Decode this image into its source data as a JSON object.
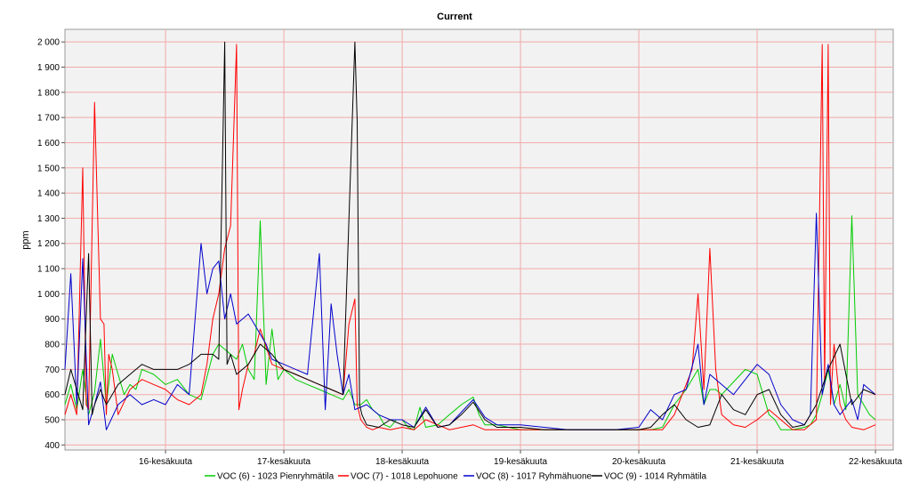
{
  "chart_data": {
    "type": "line",
    "title": "Current",
    "xlabel": "",
    "ylabel": "ppm",
    "ylim": [
      380,
      2050
    ],
    "xlim": [
      15.15,
      22.15
    ],
    "grid": true,
    "legend_position": "bottom",
    "colors": {
      "plot_background": "#f2f2f2",
      "grid": "#f2a9a9"
    },
    "y_ticks": [
      {
        "value": 400,
        "label": "400"
      },
      {
        "value": 500,
        "label": "500"
      },
      {
        "value": 600,
        "label": "600"
      },
      {
        "value": 700,
        "label": "700"
      },
      {
        "value": 800,
        "label": "800"
      },
      {
        "value": 900,
        "label": "900"
      },
      {
        "value": 1000,
        "label": "1 000"
      },
      {
        "value": 1100,
        "label": "1 100"
      },
      {
        "value": 1200,
        "label": "1 200"
      },
      {
        "value": 1300,
        "label": "1 300"
      },
      {
        "value": 1400,
        "label": "1 400"
      },
      {
        "value": 1500,
        "label": "1 500"
      },
      {
        "value": 1600,
        "label": "1 600"
      },
      {
        "value": 1700,
        "label": "1 700"
      },
      {
        "value": 1800,
        "label": "1 800"
      },
      {
        "value": 1900,
        "label": "1 900"
      },
      {
        "value": 2000,
        "label": "2 000"
      }
    ],
    "x_ticks": [
      {
        "value": 16,
        "label": "16-kesäkuuta"
      },
      {
        "value": 17,
        "label": "17-kesäkuuta"
      },
      {
        "value": 18,
        "label": "18-kesäkuuta"
      },
      {
        "value": 19,
        "label": "19-kesäkuuta"
      },
      {
        "value": 20,
        "label": "20-kesäkuuta"
      },
      {
        "value": 21,
        "label": "21-kesäkuuta"
      },
      {
        "value": 22,
        "label": "22-kesäkuuta"
      }
    ],
    "series": [
      {
        "name": "VOC (6) - 1023 Pienryhmätila",
        "color": "#00cc00",
        "x": [
          15.15,
          15.2,
          15.25,
          15.3,
          15.35,
          15.4,
          15.45,
          15.5,
          15.55,
          15.6,
          15.65,
          15.7,
          15.75,
          15.8,
          15.9,
          16.0,
          16.1,
          16.2,
          16.3,
          16.4,
          16.45,
          16.5,
          16.55,
          16.6,
          16.65,
          16.7,
          16.75,
          16.8,
          16.85,
          16.9,
          16.95,
          17.0,
          17.1,
          17.2,
          17.3,
          17.4,
          17.5,
          17.55,
          17.6,
          17.65,
          17.7,
          17.75,
          17.8,
          17.85,
          17.9,
          17.95,
          18.0,
          18.05,
          18.1,
          18.15,
          18.2,
          18.3,
          18.4,
          18.5,
          18.6,
          18.65,
          18.7,
          18.8,
          18.9,
          19.0,
          19.2,
          19.4,
          19.6,
          19.8,
          20.0,
          20.1,
          20.2,
          20.3,
          20.4,
          20.5,
          20.55,
          20.6,
          20.65,
          20.7,
          20.8,
          20.9,
          21.0,
          21.1,
          21.15,
          21.2,
          21.3,
          21.4,
          21.45,
          21.5,
          21.55,
          21.6,
          21.65,
          21.7,
          21.75,
          21.8,
          21.85,
          21.9,
          21.95,
          22.0
        ],
        "y": [
          560,
          640,
          540,
          700,
          520,
          610,
          820,
          560,
          760,
          680,
          600,
          640,
          620,
          700,
          680,
          640,
          660,
          600,
          580,
          760,
          800,
          780,
          760,
          740,
          800,
          700,
          660,
          1290,
          640,
          860,
          660,
          700,
          660,
          640,
          620,
          600,
          580,
          620,
          560,
          560,
          580,
          540,
          520,
          480,
          470,
          500,
          500,
          470,
          460,
          550,
          470,
          480,
          520,
          560,
          590,
          520,
          480,
          480,
          470,
          460,
          460,
          460,
          460,
          460,
          460,
          460,
          470,
          560,
          620,
          700,
          560,
          620,
          620,
          600,
          650,
          700,
          680,
          520,
          500,
          460,
          460,
          470,
          480,
          520,
          600,
          700,
          560,
          640,
          540,
          1310,
          600,
          560,
          520,
          500
        ],
        "values": [
          560,
          640,
          540,
          700,
          520,
          610,
          820,
          560,
          760,
          680,
          600,
          640,
          620,
          700,
          680,
          640,
          660,
          600,
          580,
          760,
          800,
          780,
          760,
          740,
          800,
          700,
          660,
          1290,
          640,
          860,
          660,
          700,
          660,
          640,
          620,
          600,
          580,
          620,
          560,
          560,
          580,
          540,
          520,
          480,
          470,
          500,
          500,
          470,
          460,
          550,
          470,
          480,
          520,
          560,
          590,
          520,
          480,
          480,
          470,
          460,
          460,
          460,
          460,
          460,
          460,
          460,
          470,
          560,
          620,
          700,
          560,
          620,
          620,
          600,
          650,
          700,
          680,
          520,
          500,
          460,
          460,
          470,
          480,
          520,
          600,
          700,
          560,
          640,
          540,
          1310,
          600,
          560,
          520,
          500
        ]
      },
      {
        "name": "VOC (7) - 1018 Lepohuone",
        "color": "#ff0000",
        "x": [
          15.15,
          15.2,
          15.25,
          15.3,
          15.33,
          15.35,
          15.4,
          15.45,
          15.48,
          15.5,
          15.52,
          15.55,
          15.6,
          15.7,
          15.8,
          15.9,
          16.0,
          16.1,
          16.2,
          16.3,
          16.35,
          16.4,
          16.45,
          16.5,
          16.55,
          16.6,
          16.62,
          16.65,
          16.7,
          16.75,
          16.8,
          16.9,
          17.0,
          17.1,
          17.2,
          17.3,
          17.4,
          17.5,
          17.55,
          17.6,
          17.62,
          17.65,
          17.7,
          17.75,
          17.8,
          17.9,
          18.0,
          18.1,
          18.2,
          18.3,
          18.4,
          18.5,
          18.6,
          18.7,
          18.8,
          19.0,
          19.2,
          19.4,
          19.6,
          19.8,
          20.0,
          20.2,
          20.3,
          20.4,
          20.45,
          20.5,
          20.55,
          20.6,
          20.65,
          20.7,
          20.75,
          20.8,
          20.9,
          21.0,
          21.1,
          21.2,
          21.3,
          21.4,
          21.5,
          21.55,
          21.57,
          21.6,
          21.62,
          21.65,
          21.7,
          21.75,
          21.8,
          21.9,
          22.0
        ],
        "y": [
          520,
          600,
          520,
          1500,
          560,
          540,
          1760,
          900,
          880,
          520,
          760,
          700,
          520,
          620,
          660,
          640,
          620,
          580,
          560,
          600,
          720,
          900,
          1000,
          1180,
          1270,
          1990,
          540,
          620,
          720,
          760,
          860,
          720,
          700,
          680,
          660,
          640,
          620,
          600,
          880,
          980,
          560,
          500,
          470,
          460,
          470,
          460,
          470,
          460,
          500,
          480,
          460,
          470,
          480,
          460,
          460,
          460,
          460,
          460,
          460,
          460,
          460,
          460,
          520,
          640,
          700,
          1000,
          620,
          1180,
          700,
          520,
          500,
          480,
          470,
          500,
          540,
          500,
          460,
          460,
          500,
          1990,
          640,
          1990,
          560,
          800,
          560,
          500,
          470,
          460,
          480
        ],
        "values": [
          520,
          600,
          520,
          1500,
          560,
          540,
          1760,
          900,
          880,
          520,
          760,
          700,
          520,
          620,
          660,
          640,
          620,
          580,
          560,
          600,
          720,
          900,
          1000,
          1180,
          1270,
          1990,
          540,
          620,
          720,
          760,
          860,
          720,
          700,
          680,
          660,
          640,
          620,
          600,
          880,
          980,
          560,
          500,
          470,
          460,
          470,
          460,
          470,
          460,
          500,
          480,
          460,
          470,
          480,
          460,
          460,
          460,
          460,
          460,
          460,
          460,
          460,
          460,
          520,
          640,
          700,
          1000,
          620,
          1180,
          700,
          520,
          500,
          480,
          470,
          500,
          540,
          500,
          460,
          460,
          500,
          1990,
          640,
          1990,
          560,
          800,
          560,
          500,
          470,
          460,
          480
        ]
      },
      {
        "name": "VOC (8) - 1017 Ryhmähuone",
        "color": "#0000cc",
        "x": [
          15.15,
          15.2,
          15.25,
          15.3,
          15.35,
          15.4,
          15.45,
          15.5,
          15.6,
          15.7,
          15.8,
          15.9,
          16.0,
          16.1,
          16.2,
          16.3,
          16.35,
          16.4,
          16.45,
          16.5,
          16.55,
          16.6,
          16.7,
          16.75,
          16.8,
          16.85,
          16.9,
          17.0,
          17.1,
          17.2,
          17.3,
          17.35,
          17.4,
          17.45,
          17.5,
          17.55,
          17.6,
          17.7,
          17.8,
          17.9,
          18.0,
          18.1,
          18.2,
          18.3,
          18.4,
          18.5,
          18.6,
          18.7,
          18.8,
          19.0,
          19.2,
          19.4,
          19.6,
          19.8,
          20.0,
          20.1,
          20.2,
          20.3,
          20.4,
          20.5,
          20.55,
          20.6,
          20.7,
          20.8,
          20.9,
          21.0,
          21.1,
          21.2,
          21.3,
          21.4,
          21.45,
          21.5,
          21.55,
          21.6,
          21.65,
          21.7,
          21.8,
          21.85,
          21.9,
          22.0
        ],
        "y": [
          700,
          1080,
          560,
          1140,
          480,
          560,
          650,
          460,
          560,
          600,
          560,
          580,
          560,
          640,
          600,
          1200,
          1000,
          1100,
          1130,
          900,
          1000,
          880,
          920,
          880,
          840,
          800,
          740,
          720,
          700,
          680,
          1160,
          540,
          960,
          760,
          600,
          680,
          540,
          560,
          520,
          500,
          500,
          470,
          550,
          470,
          480,
          530,
          580,
          510,
          480,
          480,
          470,
          460,
          460,
          460,
          470,
          540,
          500,
          600,
          620,
          800,
          560,
          680,
          640,
          600,
          660,
          720,
          680,
          560,
          500,
          480,
          520,
          1320,
          600,
          720,
          560,
          520,
          580,
          500,
          640,
          600
        ],
        "values": [
          700,
          1080,
          560,
          1140,
          480,
          560,
          650,
          460,
          560,
          600,
          560,
          580,
          560,
          640,
          600,
          1200,
          1000,
          1100,
          1130,
          900,
          1000,
          880,
          920,
          880,
          840,
          800,
          740,
          720,
          700,
          680,
          1160,
          540,
          960,
          760,
          600,
          680,
          540,
          560,
          520,
          500,
          500,
          470,
          550,
          470,
          480,
          530,
          580,
          510,
          480,
          480,
          470,
          460,
          460,
          460,
          470,
          540,
          500,
          600,
          620,
          800,
          560,
          680,
          640,
          600,
          660,
          720,
          680,
          560,
          500,
          480,
          520,
          1320,
          600,
          720,
          560,
          520,
          580,
          500,
          640,
          600
        ]
      },
      {
        "name": "VOC (9) - 1014 Ryhmätila",
        "color": "#000000",
        "x": [
          15.15,
          15.2,
          15.3,
          15.35,
          15.38,
          15.4,
          15.45,
          15.5,
          15.6,
          15.7,
          15.8,
          15.9,
          16.0,
          16.1,
          16.2,
          16.3,
          16.4,
          16.45,
          16.5,
          16.52,
          16.55,
          16.6,
          16.7,
          16.8,
          16.9,
          17.0,
          17.1,
          17.2,
          17.3,
          17.4,
          17.5,
          17.6,
          17.62,
          17.64,
          17.66,
          17.7,
          17.8,
          17.9,
          18.0,
          18.1,
          18.2,
          18.3,
          18.4,
          18.5,
          18.6,
          18.7,
          18.8,
          19.0,
          19.2,
          19.4,
          19.6,
          19.8,
          20.0,
          20.1,
          20.2,
          20.3,
          20.4,
          20.5,
          20.6,
          20.7,
          20.8,
          20.9,
          21.0,
          21.1,
          21.2,
          21.3,
          21.4,
          21.5,
          21.6,
          21.7,
          21.8,
          21.9,
          22.0
        ],
        "y": [
          600,
          700,
          540,
          1160,
          520,
          560,
          620,
          560,
          640,
          680,
          720,
          700,
          700,
          700,
          720,
          760,
          760,
          740,
          2000,
          720,
          760,
          680,
          720,
          800,
          760,
          700,
          680,
          660,
          640,
          620,
          600,
          2000,
          1680,
          560,
          520,
          480,
          470,
          500,
          480,
          470,
          540,
          470,
          480,
          520,
          570,
          500,
          470,
          470,
          460,
          460,
          460,
          460,
          460,
          470,
          520,
          560,
          500,
          470,
          480,
          600,
          540,
          520,
          600,
          620,
          520,
          470,
          480,
          560,
          700,
          800,
          560,
          620,
          600
        ],
        "values": [
          600,
          700,
          540,
          1160,
          520,
          560,
          620,
          560,
          640,
          680,
          720,
          700,
          700,
          700,
          720,
          760,
          760,
          740,
          2000,
          720,
          760,
          680,
          720,
          800,
          760,
          700,
          680,
          660,
          640,
          620,
          600,
          2000,
          1680,
          560,
          520,
          480,
          470,
          500,
          480,
          470,
          540,
          470,
          480,
          520,
          570,
          500,
          470,
          470,
          460,
          460,
          460,
          460,
          460,
          470,
          520,
          560,
          500,
          470,
          480,
          600,
          540,
          520,
          600,
          620,
          520,
          470,
          480,
          560,
          700,
          800,
          560,
          620,
          600
        ]
      }
    ]
  }
}
